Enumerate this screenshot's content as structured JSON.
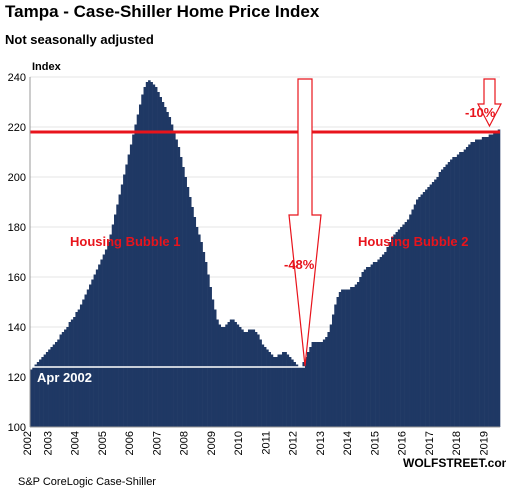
{
  "chart_data": {
    "type": "bar",
    "title": "Tampa - Case-Shiller Home Price Index",
    "subtitle": "Not seasonally adjusted",
    "y_label": "Index",
    "source": "S&P CoreLogic Case-Shiller",
    "brand": "WOLFSTREET.com",
    "annotations": [
      "Housing Bubble 1",
      "Housing Bubble 2",
      "-48%",
      "-10%",
      "Apr 2002"
    ],
    "color": "#1f3864",
    "grid": true,
    "ylim": [
      100,
      240
    ],
    "yticks": [
      100,
      120,
      140,
      160,
      180,
      200,
      220,
      240
    ],
    "hlines": [
      {
        "value": 239,
        "color": "#ffffff"
      },
      {
        "value": 218,
        "color": "#e8141c"
      },
      {
        "value": 124,
        "color": "#ffffff"
      }
    ],
    "categories": [
      "2002",
      null,
      null,
      null,
      null,
      null,
      null,
      null,
      null,
      "2003",
      null,
      null,
      null,
      null,
      null,
      null,
      null,
      null,
      null,
      null,
      null,
      "2004",
      null,
      null,
      null,
      null,
      null,
      null,
      null,
      null,
      null,
      null,
      null,
      "2005",
      null,
      null,
      null,
      null,
      null,
      null,
      null,
      null,
      null,
      null,
      null,
      "2006",
      null,
      null,
      null,
      null,
      null,
      null,
      null,
      null,
      null,
      null,
      null,
      "2007",
      null,
      null,
      null,
      null,
      null,
      null,
      null,
      null,
      null,
      null,
      null,
      "2008",
      null,
      null,
      null,
      null,
      null,
      null,
      null,
      null,
      null,
      null,
      null,
      "2009",
      null,
      null,
      null,
      null,
      null,
      null,
      null,
      null,
      null,
      null,
      null,
      "2010",
      null,
      null,
      null,
      null,
      null,
      null,
      null,
      null,
      null,
      null,
      null,
      "2011",
      null,
      null,
      null,
      null,
      null,
      null,
      null,
      null,
      null,
      null,
      null,
      "2012",
      null,
      null,
      null,
      null,
      null,
      null,
      null,
      null,
      null,
      null,
      null,
      "2013",
      null,
      null,
      null,
      null,
      null,
      null,
      null,
      null,
      null,
      null,
      null,
      "2014",
      null,
      null,
      null,
      null,
      null,
      null,
      null,
      null,
      null,
      null,
      null,
      "2015",
      null,
      null,
      null,
      null,
      null,
      null,
      null,
      null,
      null,
      null,
      null,
      "2016",
      null,
      null,
      null,
      null,
      null,
      null,
      null,
      null,
      null,
      null,
      null,
      "2017",
      null,
      null,
      null,
      null,
      null,
      null,
      null,
      null,
      null,
      null,
      null,
      "2018",
      null,
      null,
      null,
      null,
      null,
      null,
      null,
      null,
      null,
      null,
      null,
      "2019",
      null,
      null,
      null,
      null,
      null
    ],
    "values": [
      123,
      124,
      125,
      126,
      127,
      128,
      129,
      130,
      131,
      132,
      133,
      134,
      135,
      137,
      138,
      139,
      140,
      142,
      143,
      144,
      146,
      147,
      149,
      151,
      153,
      155,
      157,
      159,
      161,
      163,
      165,
      167,
      169,
      171,
      174,
      177,
      181,
      185,
      189,
      193,
      197,
      201,
      205,
      209,
      213,
      217,
      221,
      225,
      229,
      233,
      236,
      238,
      239,
      238,
      237,
      236,
      234,
      232,
      230,
      228,
      226,
      224,
      221,
      218,
      215,
      212,
      208,
      204,
      200,
      196,
      192,
      188,
      184,
      180,
      177,
      174,
      170,
      166,
      161,
      156,
      151,
      147,
      143,
      141,
      140,
      140,
      141,
      142,
      143,
      143,
      142,
      141,
      140,
      139,
      138,
      138,
      139,
      139,
      139,
      138,
      137,
      135,
      133,
      132,
      131,
      130,
      129,
      128,
      128,
      129,
      129,
      130,
      130,
      129,
      128,
      127,
      126,
      125,
      124,
      124,
      126,
      128,
      130,
      132,
      134,
      134,
      134,
      134,
      134,
      135,
      136,
      138,
      141,
      145,
      149,
      152,
      154,
      155,
      155,
      155,
      155,
      156,
      156,
      157,
      158,
      160,
      162,
      163,
      164,
      164,
      165,
      166,
      166,
      167,
      168,
      169,
      170,
      172,
      174,
      176,
      177,
      178,
      179,
      180,
      181,
      182,
      183,
      185,
      187,
      189,
      191,
      192,
      193,
      194,
      195,
      196,
      197,
      198,
      199,
      200,
      202,
      203,
      204,
      205,
      206,
      207,
      208,
      208,
      209,
      210,
      210,
      211,
      212,
      213,
      214,
      214,
      215,
      215,
      215,
      216,
      216,
      216,
      217,
      217,
      218,
      218,
      219
    ]
  }
}
